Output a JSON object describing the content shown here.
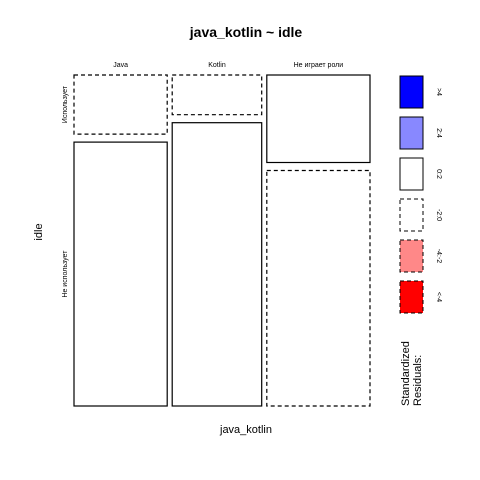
{
  "chart_data": {
    "type": "mosaic",
    "title": "java_kotlin ~ idle",
    "xlabel": "java_kotlin",
    "ylabel": "idle",
    "x_categories": [
      "Java",
      "Kotlin",
      "Не играет роли"
    ],
    "y_categories": [
      "Использует",
      "Не использует"
    ],
    "column_widths": [
      0.326,
      0.313,
      0.361
    ],
    "cells": [
      {
        "x": "Java",
        "y": "Использует",
        "fraction": 0.183,
        "residual_band": "-2:0"
      },
      {
        "x": "Java",
        "y": "Не использует",
        "fraction": 0.817,
        "residual_band": "0:2"
      },
      {
        "x": "Kotlin",
        "y": "Использует",
        "fraction": 0.123,
        "residual_band": "-2:0"
      },
      {
        "x": "Kotlin",
        "y": "Не использует",
        "fraction": 0.877,
        "residual_band": "0:2"
      },
      {
        "x": "Не играет роли",
        "y": "Использует",
        "fraction": 0.271,
        "residual_band": "0:2"
      },
      {
        "x": "Не играет роли",
        "y": "Не использует",
        "fraction": 0.729,
        "residual_band": "-2:0"
      }
    ],
    "legend": {
      "title_lines": [
        "Standardized",
        "Residuals:"
      ],
      "placement": "right",
      "bands": [
        {
          "label": ">4",
          "fill": "#0000ff",
          "dashed": false
        },
        {
          "label": "2:4",
          "fill": "#8888ff",
          "dashed": false
        },
        {
          "label": "0:2",
          "fill": "#ffffff",
          "dashed": false
        },
        {
          "label": "-2:0",
          "fill": "#ffffff",
          "dashed": true
        },
        {
          "label": "-4:-2",
          "fill": "#ff8888",
          "dashed": true
        },
        {
          "label": "<-4",
          "fill": "#ff0000",
          "dashed": true
        }
      ]
    }
  }
}
